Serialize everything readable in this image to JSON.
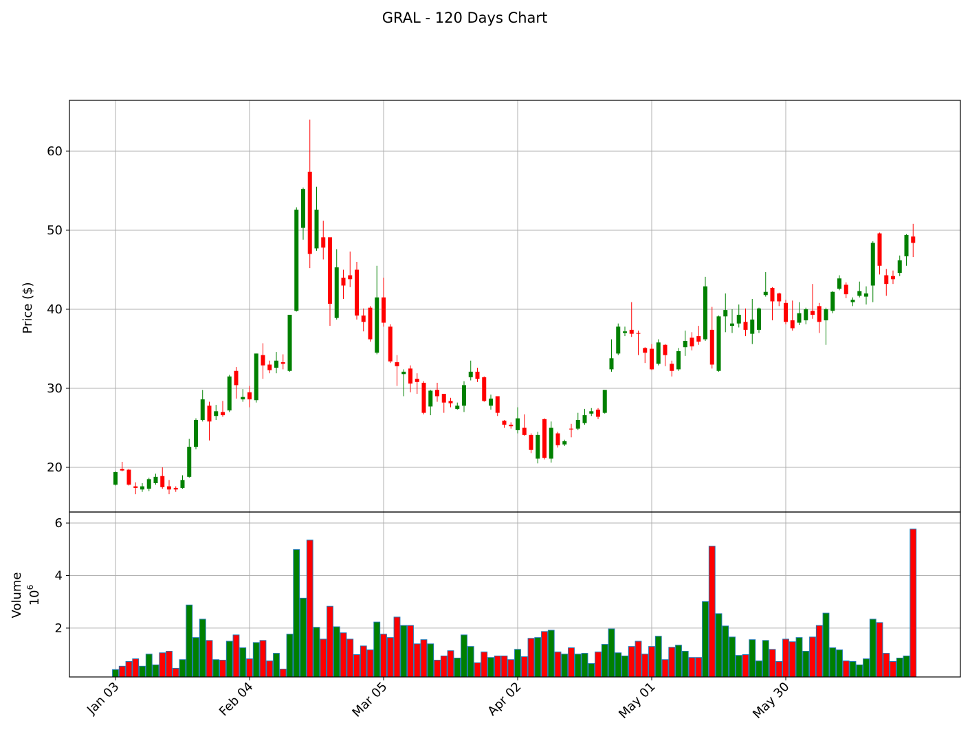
{
  "chart_data": [
    {
      "type": "candlestick",
      "title": "GRAL - 120 Days Chart",
      "ylabel": "Price ($)",
      "categories": [
        "Jan 03",
        null,
        null,
        null,
        null,
        null,
        null,
        null,
        null,
        null,
        null,
        null,
        null,
        null,
        null,
        null,
        null,
        null,
        null,
        null,
        "Feb 04",
        null,
        null,
        null,
        null,
        null,
        null,
        null,
        null,
        null,
        null,
        null,
        null,
        null,
        null,
        null,
        null,
        null,
        null,
        null,
        "Mar 05",
        null,
        null,
        null,
        null,
        null,
        null,
        null,
        null,
        null,
        null,
        null,
        null,
        null,
        null,
        null,
        null,
        null,
        null,
        null,
        "Apr 02",
        null,
        null,
        null,
        null,
        null,
        null,
        null,
        null,
        null,
        null,
        null,
        null,
        null,
        null,
        null,
        null,
        null,
        null,
        null,
        "May 01",
        null,
        null,
        null,
        null,
        null,
        null,
        null,
        null,
        null,
        null,
        null,
        null,
        null,
        null,
        null,
        null,
        null,
        null,
        null,
        "May 30",
        null,
        null,
        null,
        null,
        null,
        null,
        null,
        null,
        null,
        null,
        null,
        null,
        null,
        null,
        null,
        null,
        null,
        null,
        null
      ],
      "open": [
        17.8,
        19.8,
        19.7,
        17.6,
        17.2,
        17.3,
        18,
        18.9,
        17.6,
        17.4,
        17.4,
        18.8,
        22.6,
        26,
        27.8,
        26.5,
        27,
        27.2,
        32.2,
        28.6,
        29.5,
        28.5,
        34.2,
        33,
        32.6,
        33.3,
        32.2,
        39.8,
        50.3,
        57.4,
        47.7,
        49.1,
        49.1,
        38.9,
        44,
        44.3,
        45,
        39.2,
        40.2,
        34.5,
        41.5,
        37.8,
        33.3,
        31.8,
        32.5,
        31.2,
        30.7,
        27.7,
        29.8,
        29.3,
        28.4,
        27.4,
        27.8,
        31.4,
        32.1,
        31.4,
        27.8,
        29,
        25.9,
        25.4,
        24.7,
        25,
        24.1,
        21.1,
        26.1,
        21.1,
        24.3,
        22.9,
        24.9,
        24.9,
        25.6,
        26.8,
        27.3,
        26.9,
        32.4,
        34.4,
        37,
        37.4,
        37,
        35.1,
        35,
        33.1,
        35.5,
        33.1,
        32.4,
        35.2,
        36.4,
        36.6,
        36.2,
        37.4,
        32.2,
        39.1,
        37.9,
        38.2,
        38.4,
        36.9,
        37.4,
        41.8,
        42.7,
        42,
        40.8,
        38.6,
        38.3,
        38.6,
        39.8,
        40.4,
        38.6,
        39.8,
        42.6,
        43.1,
        40.9,
        41.7,
        41.6,
        43,
        49.6,
        44.3,
        44.2,
        44.6,
        46.7,
        49.2
      ],
      "high": [
        19.5,
        20.7,
        19.8,
        18.1,
        18,
        18.7,
        19.2,
        20,
        18.4,
        17.6,
        19,
        23.6,
        26.2,
        29.8,
        28.3,
        27.9,
        28.4,
        31.7,
        32.7,
        29.9,
        30.3,
        34.4,
        35.7,
        33.5,
        34.6,
        34.3,
        39.3,
        52.9,
        55.4,
        64,
        55.5,
        51.2,
        49.1,
        47.6,
        45,
        47.3,
        46,
        40.1,
        40.4,
        45.5,
        44,
        38.1,
        34.2,
        32.4,
        32.9,
        31.9,
        30.9,
        29.8,
        30.7,
        29.3,
        28.8,
        28.2,
        30.9,
        33.5,
        32.6,
        31.5,
        29.2,
        29,
        26,
        25.7,
        27.6,
        26.7,
        24.3,
        24.5,
        26.2,
        25.8,
        24.5,
        23.5,
        25.5,
        26.9,
        27.4,
        27.5,
        27.5,
        29.8,
        36.2,
        38.2,
        37.8,
        40.9,
        37.3,
        35.2,
        35.6,
        36.2,
        35.6,
        33.5,
        35.1,
        37.3,
        37.1,
        37.9,
        44.1,
        40.3,
        39.2,
        42,
        40,
        40.6,
        40.1,
        41.3,
        40.2,
        44.7,
        42.8,
        42.1,
        41.2,
        41.1,
        40.9,
        40.2,
        43.2,
        40.8,
        40.2,
        42.3,
        44.3,
        43.4,
        41.5,
        43.5,
        42.9,
        48.6,
        49.7,
        45.1,
        44.9,
        46.8,
        49.5,
        50.8
      ],
      "low": [
        17.7,
        19.5,
        17.7,
        16.6,
        16.9,
        17,
        17.8,
        17.3,
        16.6,
        16.9,
        17.3,
        18.7,
        22.3,
        25.8,
        23.4,
        26,
        26.4,
        27,
        28.7,
        28.3,
        27.6,
        28.2,
        31.2,
        31.9,
        31.9,
        32.4,
        32.1,
        39.7,
        48.8,
        45.2,
        47.4,
        46.3,
        37.9,
        38.7,
        41.3,
        42.8,
        38.7,
        37.2,
        35.9,
        34.3,
        37.8,
        33.2,
        30.3,
        29,
        29.5,
        29.3,
        26.7,
        26.6,
        28.3,
        26.9,
        27.6,
        27.3,
        27,
        31,
        30.8,
        28.3,
        27.3,
        26.5,
        25,
        24.9,
        24.3,
        24,
        21.8,
        20.5,
        21,
        20.6,
        22.5,
        22.7,
        23.8,
        24.7,
        25.4,
        26.5,
        26.1,
        26.8,
        32.1,
        34.2,
        36.6,
        36.5,
        34.2,
        33.2,
        32.3,
        32.9,
        32.8,
        31.5,
        32.2,
        34.1,
        34.8,
        35.5,
        36,
        32.5,
        32.1,
        37.1,
        37,
        37.7,
        36.6,
        35.6,
        37,
        41.6,
        38.6,
        40.4,
        38.1,
        37.3,
        38,
        38.1,
        38.8,
        37,
        35.5,
        39.5,
        42.4,
        41.4,
        40.4,
        41.5,
        40.6,
        40.9,
        44.4,
        41.7,
        43.2,
        44.2,
        45.5,
        46.6
      ],
      "close": [
        19.4,
        19.6,
        17.8,
        17.4,
        17.6,
        18.5,
        18.8,
        17.5,
        17.2,
        17.2,
        18.4,
        22.6,
        26,
        28.6,
        25.8,
        27.1,
        26.6,
        31.5,
        30.4,
        28.9,
        28.6,
        34.4,
        32.9,
        32.3,
        33.5,
        33.1,
        39.3,
        52.6,
        55.2,
        47,
        52.6,
        47.8,
        40.7,
        45.3,
        43,
        43.8,
        39.2,
        38.4,
        36.2,
        41.5,
        38.3,
        33.4,
        32.8,
        32.1,
        30.6,
        30.8,
        26.9,
        29.7,
        29,
        28.2,
        28.1,
        27.8,
        30.4,
        32.1,
        31.2,
        28.4,
        28.7,
        26.9,
        25.4,
        25.2,
        26.2,
        24.1,
        22.2,
        24.1,
        21.2,
        25,
        22.8,
        23.3,
        24.8,
        26,
        26.6,
        27.1,
        26.4,
        29.8,
        33.8,
        37.8,
        37.2,
        36.9,
        36.9,
        34.5,
        32.4,
        35.8,
        34.2,
        32.2,
        34.7,
        36,
        35.3,
        35.9,
        42.9,
        33,
        39.1,
        39.9,
        38.2,
        39.3,
        37.4,
        38.7,
        40.1,
        42.2,
        41,
        41,
        38.4,
        37.6,
        39.5,
        40,
        39.3,
        38.4,
        40,
        42.2,
        43.9,
        41.9,
        41.2,
        42.3,
        42,
        48.4,
        45.5,
        43.2,
        43.8,
        46.2,
        49.4,
        48.4
      ],
      "up_color": "green",
      "down_color": "red",
      "xlim": [
        -6.87,
        126.05
      ],
      "ylim": [
        14.35,
        66.43
      ],
      "yticks": [
        20,
        30,
        40,
        50,
        60
      ],
      "grid": true
    },
    {
      "type": "bar",
      "ylabel": "Volume",
      "scale_base": "10",
      "scale_exponent": "6",
      "values": [
        0.42,
        0.55,
        0.73,
        0.83,
        0.55,
        1.01,
        0.6,
        1.06,
        1.12,
        0.47,
        0.8,
        2.88,
        1.64,
        2.34,
        1.53,
        0.8,
        0.78,
        1.5,
        1.74,
        1.25,
        0.83,
        1.45,
        1.53,
        0.75,
        1.04,
        0.44,
        1.77,
        4.99,
        3.14,
        5.35,
        2.03,
        1.58,
        2.83,
        2.05,
        1.82,
        1.58,
        0.99,
        1.32,
        1.17,
        2.23,
        1.77,
        1.64,
        2.42,
        2.1,
        2.1,
        1.4,
        1.56,
        1.4,
        0.78,
        0.94,
        1.14,
        0.86,
        1.74,
        1.3,
        0.68,
        1.09,
        0.88,
        0.94,
        0.94,
        0.8,
        1.19,
        0.91,
        1.61,
        1.64,
        1.87,
        1.92,
        1.09,
        1.01,
        1.25,
        1.01,
        1.04,
        0.65,
        1.09,
        1.38,
        1.97,
        1.06,
        0.94,
        1.3,
        1.5,
        1.01,
        1.3,
        1.69,
        0.8,
        1.27,
        1.35,
        1.12,
        0.88,
        0.88,
        3.01,
        5.12,
        2.55,
        2.08,
        1.66,
        0.96,
        0.99,
        1.56,
        0.75,
        1.53,
        1.19,
        0.73,
        1.58,
        1.48,
        1.64,
        1.12,
        1.66,
        2.1,
        2.57,
        1.25,
        1.17,
        0.75,
        0.73,
        0.6,
        0.83,
        2.34,
        2.21,
        1.04,
        0.73,
        0.86,
        0.94,
        5.77
      ],
      "edge_color": "#1f77b4",
      "ylim": [
        0.14,
        6.42
      ],
      "yticks": [
        2,
        4,
        6
      ],
      "grid": true
    }
  ]
}
